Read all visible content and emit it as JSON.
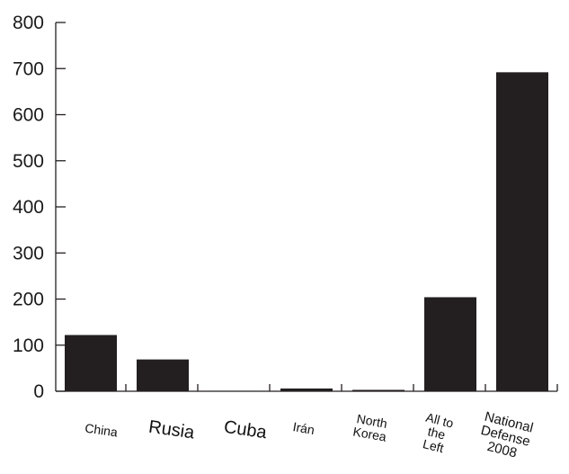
{
  "chart_data": {
    "type": "bar",
    "title": "",
    "xlabel": "",
    "ylabel": "",
    "ylim": [
      0,
      800
    ],
    "yticks": [
      0,
      100,
      200,
      300,
      400,
      500,
      600,
      700,
      800
    ],
    "grid": false,
    "categories": [
      "China",
      "Rusia",
      "Cuba",
      "Irán",
      "North Korea",
      "All to the Left",
      "National Defense 2008"
    ],
    "category_label_lines": [
      [
        "China"
      ],
      [
        "Rusia"
      ],
      [
        "Cuba"
      ],
      [
        "Irán"
      ],
      [
        "North",
        "Korea"
      ],
      [
        "All to",
        "the",
        "Left"
      ],
      [
        "National",
        "Defense",
        "2008"
      ]
    ],
    "values": [
      122,
      69,
      1,
      6,
      3,
      204,
      692
    ],
    "bar_color": "#231f20"
  }
}
